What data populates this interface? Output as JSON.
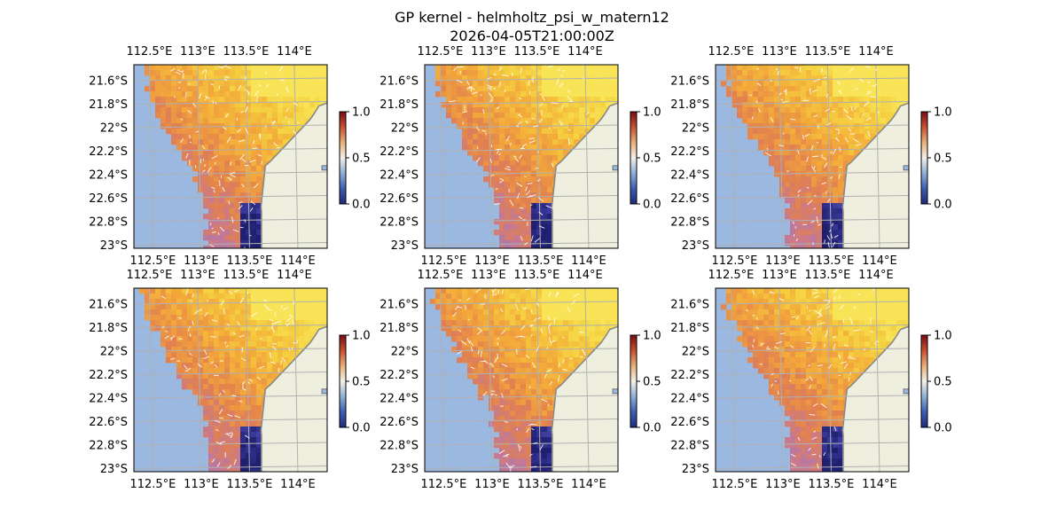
{
  "figure": {
    "title": "GP kernel - helmholtz_psi_w_matern12",
    "subtitle": "2026-04-05T21:00:00Z"
  },
  "colors": {
    "ocean": "#9bb8e0",
    "land": "#efefdf",
    "coastline": "#888888",
    "gridline": "#b0b0b0",
    "arrows": "#ffffff",
    "colormap": [
      "#1a1a66",
      "#3a3a9e",
      "#6a5aa5",
      "#9a7aa0",
      "#c0789e",
      "#e2804f",
      "#f3a83a",
      "#f5d040",
      "#f8e85a"
    ],
    "colorbar": [
      "#1f2a7a",
      "#3b5fb4",
      "#8eb0d8",
      "#f3f0e6",
      "#e8b07a",
      "#c8502f",
      "#7a0c14"
    ]
  },
  "chart_data": [
    {
      "type": "heatmap",
      "panel": 1,
      "xlim": [
        112.5,
        114.2
      ],
      "ylim": [
        -23.0,
        -21.45
      ],
      "xticks": [
        "112.5°E",
        "113°E",
        "113.5°E",
        "114°E"
      ],
      "yticks": [
        "21.6°S",
        "21.8°S",
        "22°S",
        "22.2°S",
        "22.4°S",
        "22.6°S",
        "22.8°S",
        "23°S"
      ],
      "colorbar": {
        "range": [
          0.0,
          1.0
        ],
        "ticks": [
          "0.0",
          "0.5",
          "1.0"
        ]
      }
    },
    {
      "type": "heatmap",
      "panel": 2,
      "xlim": [
        112.5,
        114.2
      ],
      "ylim": [
        -23.0,
        -21.45
      ],
      "xticks": [
        "112.5°E",
        "113°E",
        "113.5°E",
        "114°E"
      ],
      "yticks": [
        "21.6°S",
        "21.8°S",
        "22°S",
        "22.2°S",
        "22.4°S",
        "22.6°S",
        "22.8°S",
        "23°S"
      ],
      "colorbar": {
        "range": [
          0.0,
          1.0
        ],
        "ticks": [
          "0.0",
          "0.5",
          "1.0"
        ]
      }
    },
    {
      "type": "heatmap",
      "panel": 3,
      "xlim": [
        112.5,
        114.2
      ],
      "ylim": [
        -23.0,
        -21.45
      ],
      "xticks": [
        "112.5°E",
        "113°E",
        "113.5°E",
        "114°E"
      ],
      "yticks": [
        "21.6°S",
        "21.8°S",
        "22°S",
        "22.2°S",
        "22.4°S",
        "22.6°S",
        "22.8°S",
        "23°S"
      ],
      "colorbar": {
        "range": [
          0.0,
          1.0
        ],
        "ticks": [
          "0.0",
          "0.5",
          "1.0"
        ]
      }
    },
    {
      "type": "heatmap",
      "panel": 4,
      "xlim": [
        112.5,
        114.2
      ],
      "ylim": [
        -23.0,
        -21.45
      ],
      "xticks": [
        "112.5°E",
        "113°E",
        "113.5°E",
        "114°E"
      ],
      "yticks": [
        "21.6°S",
        "21.8°S",
        "22°S",
        "22.2°S",
        "22.4°S",
        "22.6°S",
        "22.8°S",
        "23°S"
      ],
      "colorbar": {
        "range": [
          0.0,
          1.0
        ],
        "ticks": [
          "0.0",
          "0.5",
          "1.0"
        ]
      }
    },
    {
      "type": "heatmap",
      "panel": 5,
      "xlim": [
        112.5,
        114.2
      ],
      "ylim": [
        -23.0,
        -21.45
      ],
      "xticks": [
        "112.5°E",
        "113°E",
        "113.5°E",
        "114°E"
      ],
      "yticks": [
        "21.6°S",
        "21.8°S",
        "22°S",
        "22.2°S",
        "22.4°S",
        "22.6°S",
        "22.8°S",
        "23°S"
      ],
      "colorbar": {
        "range": [
          0.0,
          1.0
        ],
        "ticks": [
          "0.0",
          "0.5",
          "1.0"
        ]
      }
    },
    {
      "type": "heatmap",
      "panel": 6,
      "xlim": [
        112.5,
        114.2
      ],
      "ylim": [
        -23.0,
        -21.45
      ],
      "xticks": [
        "112.5°E",
        "113°E",
        "113.5°E",
        "114°E"
      ],
      "yticks": [
        "21.6°S",
        "21.8°S",
        "22°S",
        "22.2°S",
        "22.4°S",
        "22.6°S",
        "22.8°S",
        "23°S"
      ],
      "colorbar": {
        "range": [
          0.0,
          1.0
        ],
        "ticks": [
          "0.0",
          "0.5",
          "1.0"
        ]
      }
    }
  ]
}
